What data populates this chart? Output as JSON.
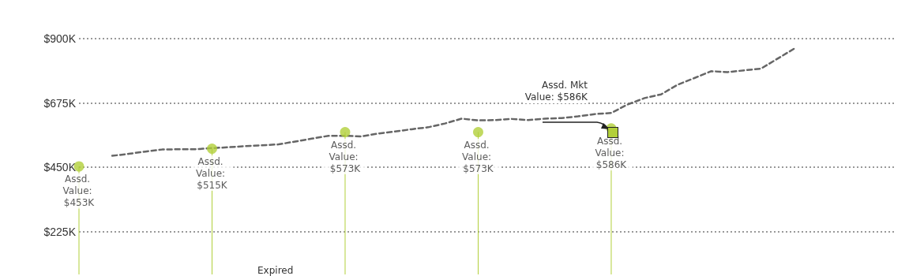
{
  "chart_data": {
    "type": "line",
    "categories": [
      null,
      null,
      null,
      null,
      null,
      null,
      null,
      null,
      null,
      null,
      null,
      null,
      null,
      null,
      null,
      null,
      null,
      null,
      null,
      null,
      null,
      null,
      null,
      null,
      null,
      null,
      null,
      null,
      null,
      null,
      null,
      null,
      null,
      null,
      null,
      null,
      null,
      null,
      null,
      null,
      null,
      null,
      null,
      null,
      null,
      null,
      null,
      null,
      null,
      null
    ],
    "series": [
      {
        "color": "#666666",
        "line_style": "dashed",
        "marker": "none",
        "values": [
          null,
          null,
          490,
          497,
          505,
          512,
          513,
          513,
          517,
          520,
          524,
          527,
          530,
          540,
          550,
          560,
          560,
          558,
          568,
          575,
          583,
          590,
          603,
          620,
          614,
          615,
          619,
          615,
          620,
          622,
          628,
          636,
          640,
          670,
          692,
          705,
          739,
          762,
          786,
          783,
          789,
          795,
          830,
          865,
          null,
          null,
          null,
          null,
          null,
          null
        ]
      },
      {
        "type": "lollipop",
        "color": "#b2cf3a",
        "marker": "circle",
        "values": [
          453,
          null,
          null,
          null,
          null,
          null,
          null,
          null,
          515,
          null,
          null,
          null,
          null,
          null,
          null,
          null,
          573,
          null,
          null,
          null,
          null,
          null,
          null,
          null,
          573,
          null,
          null,
          null,
          null,
          null,
          null,
          null,
          586,
          null,
          null,
          null,
          null,
          null,
          null,
          null,
          null,
          null,
          null,
          null,
          null,
          null,
          null,
          null,
          null,
          null
        ],
        "value_labels": [
          "Assd. Value: $453K",
          null,
          null,
          null,
          null,
          null,
          null,
          null,
          "Assd. Value: $515K",
          null,
          null,
          null,
          null,
          null,
          null,
          null,
          "Assd. Value: $573K",
          null,
          null,
          null,
          null,
          null,
          null,
          null,
          "Assd. Value: $573K",
          null,
          null,
          null,
          null,
          null,
          null,
          null,
          "Assd. Value: $586K",
          null,
          null,
          null,
          null,
          null,
          null,
          null,
          null,
          null,
          null,
          null,
          null,
          null,
          null,
          null,
          null,
          null
        ]
      }
    ],
    "ylim": [
      75,
      900
    ],
    "yticks": [
      {
        "value": 225,
        "label": "$225K"
      },
      {
        "value": 450,
        "label": "$450K"
      },
      {
        "value": 675,
        "label": "$675K"
      },
      {
        "value": 900,
        "label": "$900K"
      }
    ],
    "grid": "y",
    "tick_labels": "y",
    "annotations": [
      "Assd. Mkt Value: $586K",
      "Expired"
    ]
  }
}
